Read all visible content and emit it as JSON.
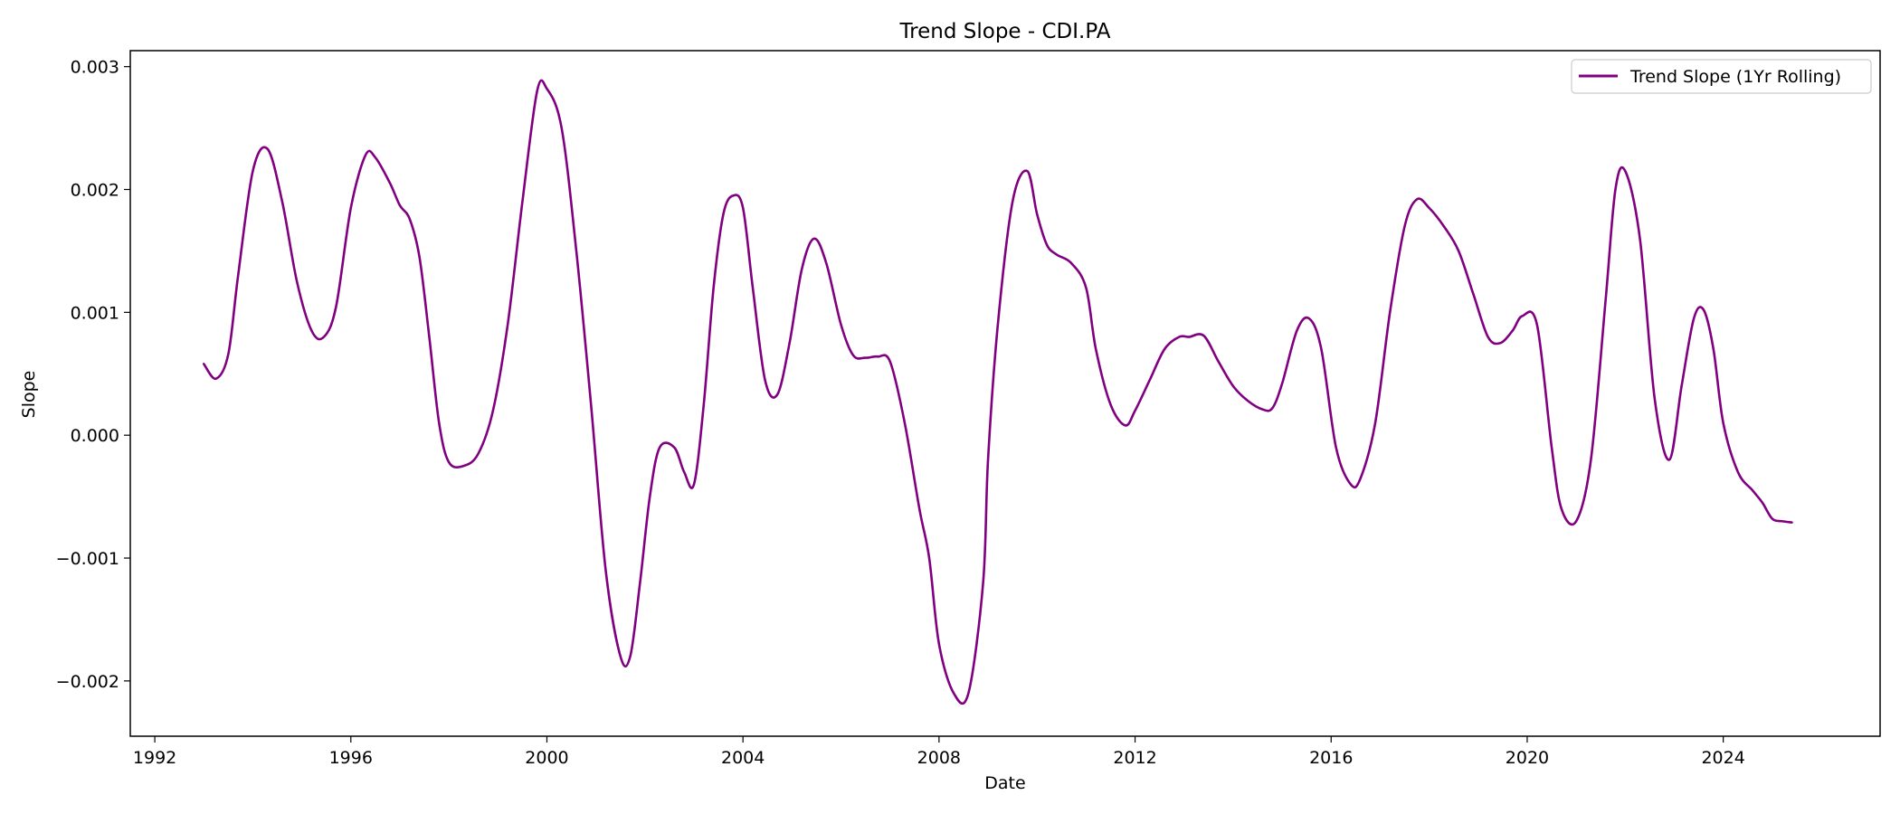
{
  "chart_data": {
    "type": "line",
    "title": "Trend Slope - CDI.PA",
    "xlabel": "Date",
    "ylabel": "Slope",
    "xlim": [
      1991.5,
      2027.2
    ],
    "ylim": [
      -0.00245,
      0.00313
    ],
    "x_ticks": [
      1992,
      1996,
      2000,
      2004,
      2008,
      2012,
      2016,
      2020,
      2024
    ],
    "x_tick_labels": [
      "1992",
      "1996",
      "2000",
      "2004",
      "2008",
      "2012",
      "2016",
      "2020",
      "2024"
    ],
    "y_ticks": [
      -0.002,
      -0.001,
      0.0,
      0.001,
      0.002,
      0.003
    ],
    "y_tick_labels": [
      "−0.002",
      "−0.001",
      "0.000",
      "0.001",
      "0.002",
      "0.003"
    ],
    "grid": false,
    "legend_position": "top-right",
    "series": [
      {
        "name": "Trend Slope (1Yr Rolling)",
        "color": "#800080",
        "x": [
          1993.0,
          1993.25,
          1993.5,
          1993.7,
          1994.0,
          1994.3,
          1994.6,
          1994.9,
          1995.2,
          1995.45,
          1995.7,
          1996.0,
          1996.3,
          1996.5,
          1996.8,
          1997.0,
          1997.2,
          1997.4,
          1997.6,
          1997.8,
          1998.0,
          1998.3,
          1998.6,
          1998.9,
          1999.2,
          1999.5,
          1999.8,
          2000.0,
          2000.3,
          2000.6,
          2000.9,
          2001.2,
          2001.5,
          2001.7,
          2001.9,
          2002.1,
          2002.3,
          2002.6,
          2002.8,
          2003.0,
          2003.2,
          2003.4,
          2003.6,
          2003.8,
          2004.0,
          2004.2,
          2004.45,
          2004.7,
          2004.95,
          2005.2,
          2005.45,
          2005.7,
          2006.0,
          2006.25,
          2006.5,
          2006.75,
          2007.0,
          2007.3,
          2007.6,
          2007.8,
          2008.0,
          2008.3,
          2008.6,
          2008.9,
          2009.0,
          2009.2,
          2009.5,
          2009.8,
          2010.0,
          2010.2,
          2010.4,
          2010.7,
          2011.0,
          2011.2,
          2011.5,
          2011.8,
          2012.0,
          2012.3,
          2012.6,
          2012.9,
          2013.1,
          2013.4,
          2013.7,
          2014.0,
          2014.3,
          2014.6,
          2014.8,
          2015.0,
          2015.3,
          2015.55,
          2015.8,
          2016.1,
          2016.4,
          2016.6,
          2016.9,
          2017.2,
          2017.5,
          2017.75,
          2018.0,
          2018.3,
          2018.6,
          2018.9,
          2019.2,
          2019.45,
          2019.7,
          2019.9,
          2020.2,
          2020.5,
          2020.7,
          2021.0,
          2021.3,
          2021.6,
          2021.8,
          2022.0,
          2022.3,
          2022.6,
          2022.9,
          2023.15,
          2023.4,
          2023.6,
          2023.8,
          2024.0,
          2024.3,
          2024.6,
          2024.8,
          2025.0,
          2025.2,
          2025.4
        ],
        "y": [
          0.00058,
          0.00046,
          0.00066,
          0.0013,
          0.00215,
          0.00233,
          0.0019,
          0.00125,
          0.00085,
          0.0008,
          0.00105,
          0.00185,
          0.00228,
          0.00226,
          0.00205,
          0.00187,
          0.00176,
          0.00145,
          0.0008,
          0.0001,
          -0.00022,
          -0.00025,
          -0.00015,
          0.0002,
          0.0009,
          0.0019,
          0.0028,
          0.00282,
          0.0025,
          0.0015,
          0.00025,
          -0.0011,
          -0.0018,
          -0.0018,
          -0.0012,
          -0.0005,
          -0.0001,
          -0.0001,
          -0.0003,
          -0.0004,
          0.00025,
          0.0012,
          0.0018,
          0.00195,
          0.00185,
          0.0012,
          0.00045,
          0.00033,
          0.00075,
          0.00135,
          0.0016,
          0.0014,
          0.0009,
          0.00065,
          0.00063,
          0.00064,
          0.0006,
          0.0001,
          -0.0006,
          -0.001,
          -0.0017,
          -0.0021,
          -0.0021,
          -0.0012,
          -0.0002,
          0.0009,
          0.0019,
          0.00215,
          0.0018,
          0.00155,
          0.00147,
          0.0014,
          0.0012,
          0.0007,
          0.00025,
          8e-05,
          0.0002,
          0.00045,
          0.0007,
          0.0008,
          0.0008,
          0.00081,
          0.0006,
          0.0004,
          0.00028,
          0.00021,
          0.00022,
          0.00042,
          0.00085,
          0.00095,
          0.0007,
          -0.0001,
          -0.0004,
          -0.00035,
          0.0001,
          0.001,
          0.0017,
          0.00192,
          0.00185,
          0.0017,
          0.0015,
          0.00115,
          0.0008,
          0.00075,
          0.00085,
          0.00097,
          0.0009,
          -0.0001,
          -0.0006,
          -0.0007,
          -0.0002,
          0.0011,
          0.002,
          0.00215,
          0.0016,
          0.0003,
          -0.0002,
          0.0004,
          0.00095,
          0.00102,
          0.0007,
          0.0001,
          -0.0003,
          -0.00045,
          -0.00055,
          -0.00068,
          -0.0007,
          -0.00071
        ]
      }
    ]
  }
}
